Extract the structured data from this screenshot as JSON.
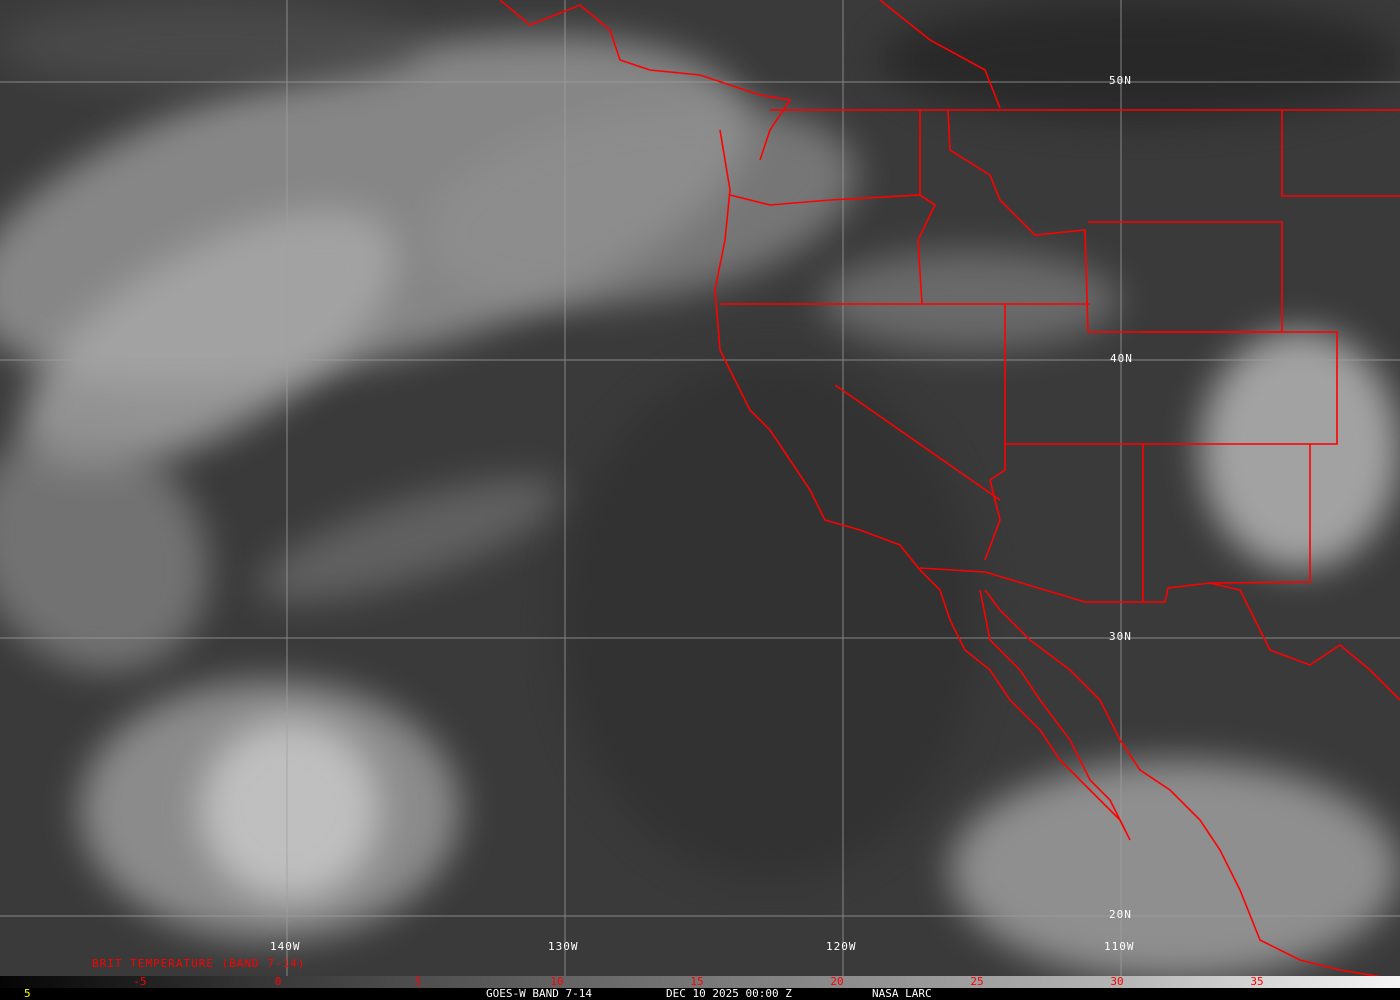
{
  "product": {
    "title": "GOES-W BAND 7-14",
    "datetime": "DEC 10 2025 00:00 Z",
    "credit": "NASA LARC",
    "frame_number": "5"
  },
  "legend": {
    "title": "BRIT TEMPERATURE (BAND 7-14)",
    "ticks": [
      "-5",
      "0",
      "5",
      "10",
      "15",
      "20",
      "25",
      "30",
      "35"
    ],
    "tick_color": "#ff0000",
    "scale_colors": [
      "#050505",
      "#f5f5f5"
    ]
  },
  "grid": {
    "latitude_labels": [
      "50N",
      "40N",
      "30N",
      "20N"
    ],
    "longitude_labels": [
      "140W",
      "130W",
      "120W",
      "110W"
    ],
    "line_color": "#a0a0a0"
  },
  "map": {
    "border_color": "#ff0000",
    "region": "Northeast Pacific and Western North America"
  }
}
